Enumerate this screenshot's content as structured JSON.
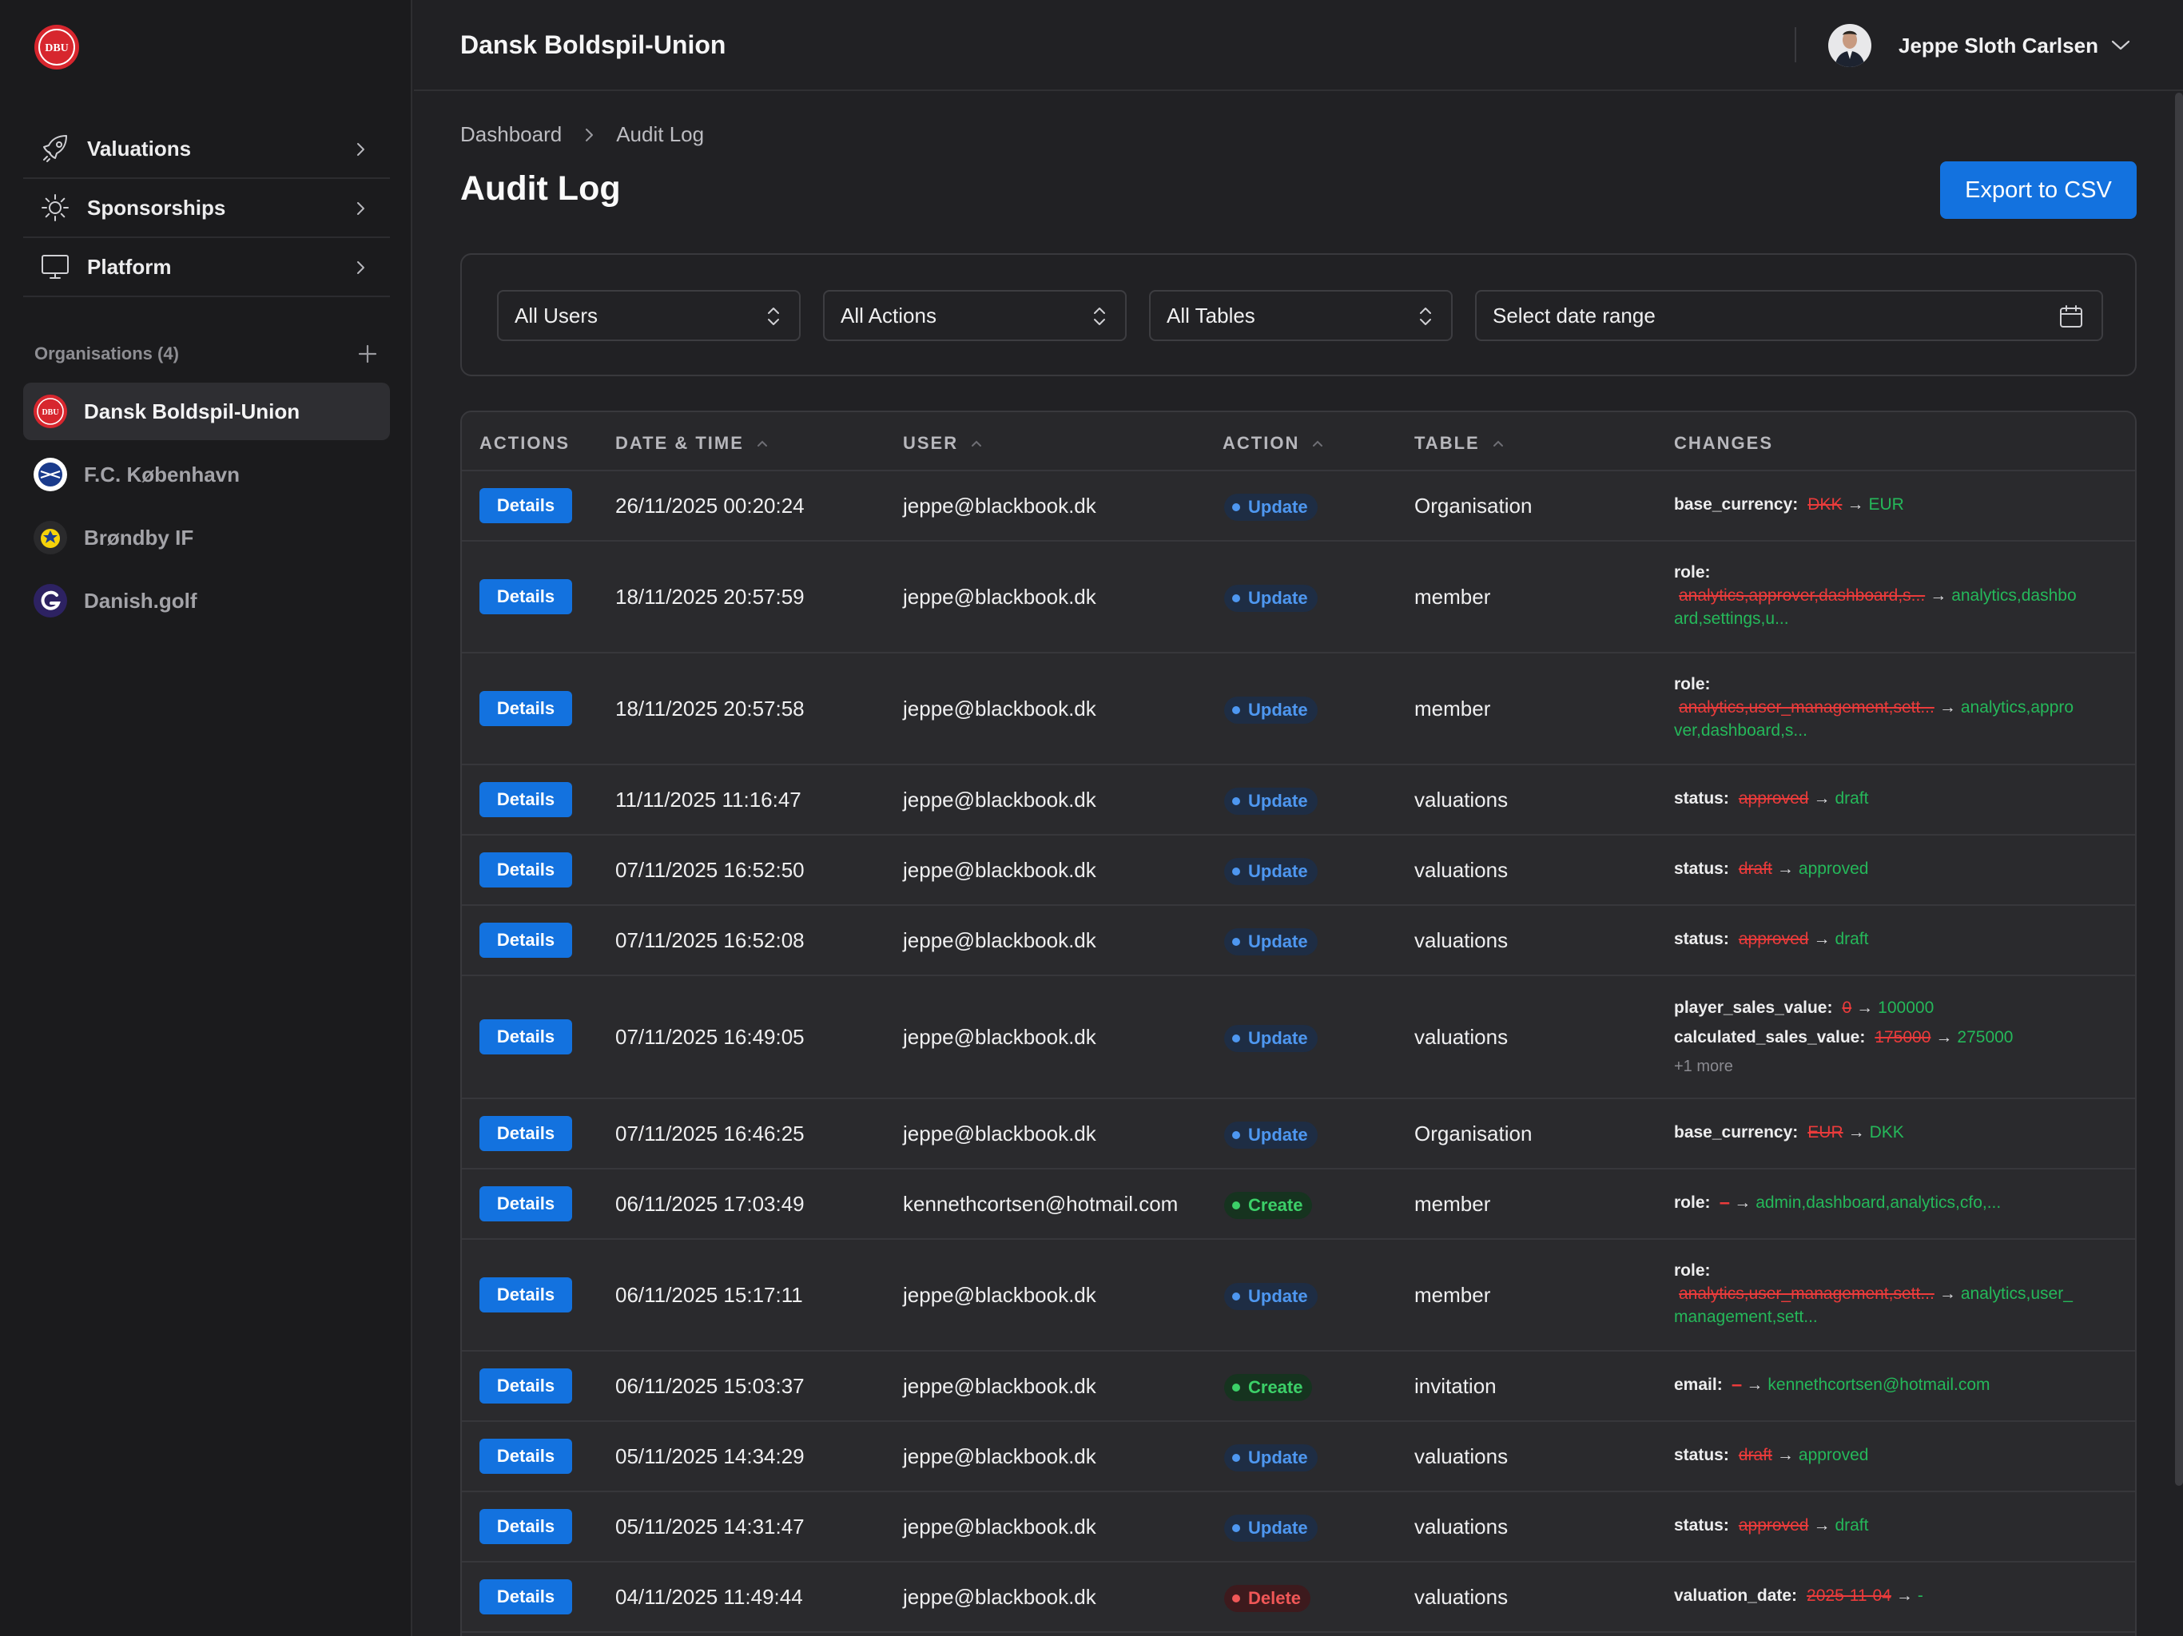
{
  "header": {
    "org_title": "Dansk Boldspil-Union",
    "user_name": "Jeppe Sloth Carlsen"
  },
  "sidebar": {
    "nav": [
      {
        "label": "Valuations",
        "icon": "rocket-icon"
      },
      {
        "label": "Sponsorships",
        "icon": "sun-icon"
      },
      {
        "label": "Platform",
        "icon": "monitor-icon"
      }
    ],
    "orgs_title": "Organisations (4)",
    "orgs": [
      {
        "label": "Dansk Boldspil-Union",
        "active": true
      },
      {
        "label": "F.C. København",
        "active": false
      },
      {
        "label": "Brøndby IF",
        "active": false
      },
      {
        "label": "Danish.golf",
        "active": false
      }
    ]
  },
  "breadcrumb": {
    "items": [
      "Dashboard",
      "Audit Log"
    ]
  },
  "page": {
    "title": "Audit Log",
    "export_label": "Export to CSV"
  },
  "filters": {
    "users": "All Users",
    "actions": "All Actions",
    "tables": "All Tables",
    "date": "Select date range"
  },
  "table": {
    "columns": [
      "ACTIONS",
      "DATE & TIME",
      "USER",
      "ACTION",
      "TABLE",
      "CHANGES"
    ],
    "details_label": "Details",
    "rows": [
      {
        "datetime": "26/11/2025 00:20:24",
        "user": "jeppe@blackbook.dk",
        "action": "Update",
        "table": "Organisation",
        "changes": {
          "kind": "inline",
          "lines": [
            {
              "field": "base_currency:",
              "old": "DKK",
              "new": "EUR"
            }
          ]
        }
      },
      {
        "datetime": "18/11/2025 20:57:59",
        "user": "jeppe@blackbook.dk",
        "action": "Update",
        "table": "member",
        "changes": {
          "kind": "wrap",
          "field": "role:",
          "old": "analytics,approver,dashboard,s...",
          "new1": "analytics,dashbo",
          "new2": "ard,settings,u..."
        }
      },
      {
        "datetime": "18/11/2025 20:57:58",
        "user": "jeppe@blackbook.dk",
        "action": "Update",
        "table": "member",
        "changes": {
          "kind": "wrap",
          "field": "role:",
          "old": "analytics,user_management,sett...",
          "new1": "analytics,appro",
          "new2": "ver,dashboard,s..."
        }
      },
      {
        "datetime": "11/11/2025 11:16:47",
        "user": "jeppe@blackbook.dk",
        "action": "Update",
        "table": "valuations",
        "changes": {
          "kind": "inline",
          "lines": [
            {
              "field": "status:",
              "old": "approved",
              "new": "draft"
            }
          ]
        }
      },
      {
        "datetime": "07/11/2025 16:52:50",
        "user": "jeppe@blackbook.dk",
        "action": "Update",
        "table": "valuations",
        "changes": {
          "kind": "inline",
          "lines": [
            {
              "field": "status:",
              "old": "draft",
              "new": "approved"
            }
          ]
        }
      },
      {
        "datetime": "07/11/2025 16:52:08",
        "user": "jeppe@blackbook.dk",
        "action": "Update",
        "table": "valuations",
        "changes": {
          "kind": "inline",
          "lines": [
            {
              "field": "status:",
              "old": "approved",
              "new": "draft"
            }
          ]
        }
      },
      {
        "datetime": "07/11/2025 16:49:05",
        "user": "jeppe@blackbook.dk",
        "action": "Update",
        "table": "valuations",
        "changes": {
          "kind": "inline",
          "lines": [
            {
              "field": "player_sales_value:",
              "old": "0",
              "new": "100000"
            },
            {
              "field": "calculated_sales_value:",
              "old": "175000",
              "new": "275000"
            }
          ],
          "more": "+1 more"
        }
      },
      {
        "datetime": "07/11/2025 16:46:25",
        "user": "jeppe@blackbook.dk",
        "action": "Update",
        "table": "Organisation",
        "changes": {
          "kind": "inline",
          "lines": [
            {
              "field": "base_currency:",
              "old": "EUR",
              "new": "DKK"
            }
          ]
        }
      },
      {
        "datetime": "06/11/2025 17:03:49",
        "user": "kennethcortsen@hotmail.com",
        "action": "Create",
        "table": "member",
        "changes": {
          "kind": "inline",
          "lines": [
            {
              "field": "role:",
              "old": "–",
              "new": "admin,dashboard,analytics,cfo,..."
            }
          ]
        }
      },
      {
        "datetime": "06/11/2025 15:17:11",
        "user": "jeppe@blackbook.dk",
        "action": "Update",
        "table": "member",
        "changes": {
          "kind": "wrap",
          "field": "role:",
          "old": "analytics,user_management,sett...",
          "new1": "analytics,user_",
          "new2": "management,sett..."
        }
      },
      {
        "datetime": "06/11/2025 15:03:37",
        "user": "jeppe@blackbook.dk",
        "action": "Create",
        "table": "invitation",
        "changes": {
          "kind": "inline",
          "lines": [
            {
              "field": "email:",
              "old": "–",
              "new": "kennethcortsen@hotmail.com"
            }
          ]
        }
      },
      {
        "datetime": "05/11/2025 14:34:29",
        "user": "jeppe@blackbook.dk",
        "action": "Update",
        "table": "valuations",
        "changes": {
          "kind": "inline",
          "lines": [
            {
              "field": "status:",
              "old": "draft",
              "new": "approved"
            }
          ]
        }
      },
      {
        "datetime": "05/11/2025 14:31:47",
        "user": "jeppe@blackbook.dk",
        "action": "Update",
        "table": "valuations",
        "changes": {
          "kind": "inline",
          "lines": [
            {
              "field": "status:",
              "old": "approved",
              "new": "draft"
            }
          ]
        }
      },
      {
        "datetime": "04/11/2025 11:49:44",
        "user": "jeppe@blackbook.dk",
        "action": "Delete",
        "table": "valuations",
        "changes": {
          "kind": "inline",
          "lines": [
            {
              "field": "valuation_date:",
              "old": "2025-11-04",
              "new": "-"
            }
          ]
        }
      }
    ]
  },
  "colors": {
    "accent": "#1372df",
    "update": "#4e97f0",
    "create": "#3ccf68",
    "delete": "#f05757",
    "old_value": "#ea3b3b",
    "new_value": "#25b85a"
  }
}
